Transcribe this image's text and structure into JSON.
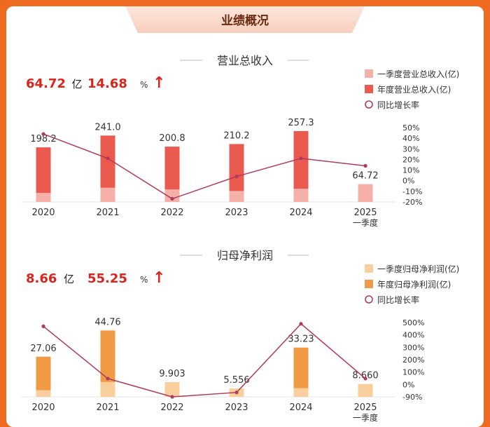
{
  "page_title": "业绩概况",
  "colors": {
    "background": "#ee6a1e",
    "rev_q1": "#f5b1a8",
    "rev_year": "#ea5a4e",
    "np_q1": "#f9cf9e",
    "np_year": "#f19a45",
    "growth_line": "#b03a5b",
    "headline_red": "#d9261c"
  },
  "chart_data": [
    {
      "type": "bar",
      "title": "营业总收入",
      "headline": {
        "value": "64.72",
        "unit": "亿",
        "growth": "14.68",
        "pct": "%",
        "arrow": "↑"
      },
      "categories": [
        "2020",
        "2021",
        "2022",
        "2023",
        "2024",
        "2025"
      ],
      "category_sublabels": [
        "",
        "",
        "",
        "",
        "",
        "一季度"
      ],
      "series": [
        {
          "name": "一季度营业总收入(亿)",
          "values": [
            33.0,
            51.7,
            45.5,
            39.8,
            48.0,
            64.72
          ]
        },
        {
          "name": "年度营业总收入(亿)",
          "values": [
            198.2,
            241.0,
            200.8,
            210.2,
            257.3,
            null
          ]
        },
        {
          "name": "同比增长率",
          "type": "line",
          "values": [
            44,
            21,
            -17,
            4,
            21,
            14
          ]
        }
      ],
      "data_labels": [
        "198.2",
        "241.0",
        "200.8",
        "210.2",
        "257.3",
        "64.72"
      ],
      "y_left_range": [
        0,
        280
      ],
      "y_right_ticks": [
        "50%",
        "40%",
        "30%",
        "20%",
        "10%",
        "0%",
        "-10%",
        "-20%"
      ],
      "y_right_range": [
        -20,
        50
      ],
      "legend": [
        "一季度营业总收入(亿)",
        "年度营业总收入(亿)",
        "同比增长率"
      ]
    },
    {
      "type": "bar",
      "title": "归母净利润",
      "headline": {
        "value": "8.66",
        "unit": "亿",
        "growth": "55.25",
        "pct": "%",
        "arrow": "↑"
      },
      "categories": [
        "2020",
        "2021",
        "2022",
        "2023",
        "2024",
        "2025"
      ],
      "category_sublabels": [
        "",
        "",
        "",
        "",
        "",
        "一季度"
      ],
      "series": [
        {
          "name": "一季度归母净利润(亿)",
          "values": [
            4.5,
            10.0,
            9.903,
            5.556,
            5.9,
            8.66
          ]
        },
        {
          "name": "年度归母净利润(亿)",
          "values": [
            27.06,
            44.76,
            9.903,
            5.556,
            33.23,
            null
          ]
        },
        {
          "name": "同比增长率",
          "type": "line",
          "values": [
            470,
            55,
            -90,
            -55,
            490,
            55
          ]
        }
      ],
      "data_labels": [
        "27.06",
        "44.76",
        "9.903",
        "5.556",
        "33.23",
        "8.660"
      ],
      "y_left_range": [
        0,
        52
      ],
      "y_right_ticks": [
        "500%",
        "400%",
        "300%",
        "200%",
        "100%",
        "0%",
        "-90%"
      ],
      "y_right_values": [
        500,
        400,
        300,
        200,
        100,
        0,
        -90
      ],
      "y_right_range": [
        -90,
        500
      ],
      "legend": [
        "一季度归母净利润(亿)",
        "年度归母净利润(亿)",
        "同比增长率"
      ]
    }
  ]
}
